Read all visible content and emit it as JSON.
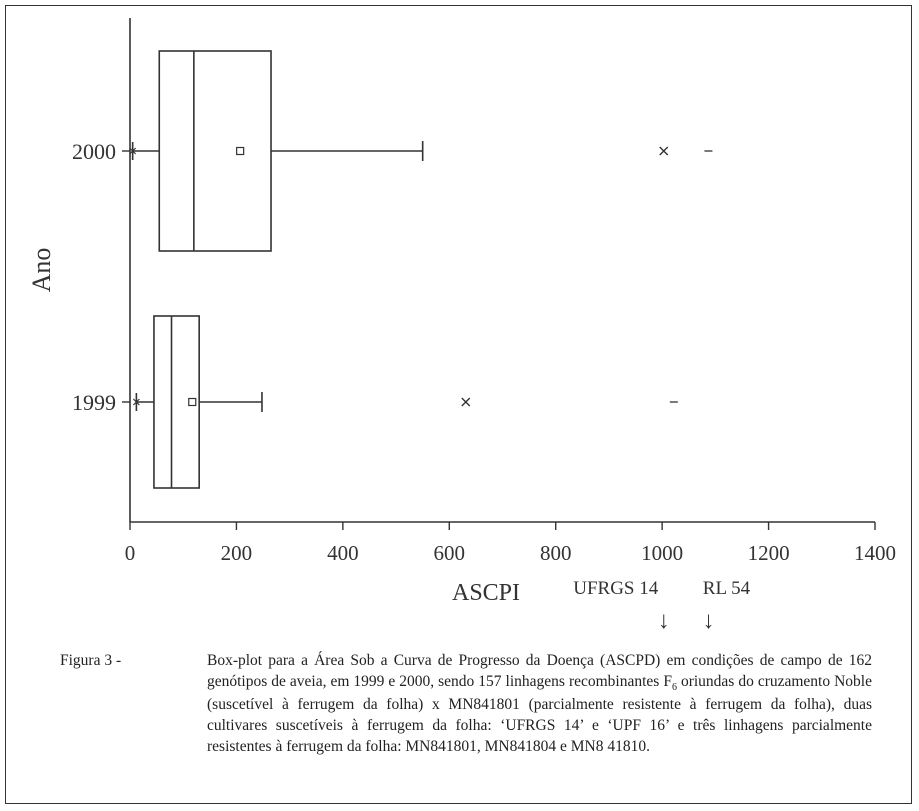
{
  "chart_data": {
    "type": "boxplot",
    "orientation": "horizontal",
    "ylabel": "Ano",
    "xlabel": "ASCPI",
    "xlim": [
      0,
      1400
    ],
    "xticks": [
      0,
      200,
      400,
      600,
      800,
      1000,
      1200,
      1400
    ],
    "categories": [
      "2000",
      "1999"
    ],
    "series": [
      {
        "category": "2000",
        "min": 5,
        "q1": 55,
        "median": 120,
        "q3": 265,
        "max": 550,
        "mean": 207,
        "outlier_x": 1003,
        "outlier_dash": 1087
      },
      {
        "category": "1999",
        "min": 12,
        "q1": 45,
        "median": 78,
        "q3": 130,
        "max": 248,
        "mean": 117,
        "outlier_x": 631,
        "outlier_dash": 1022
      }
    ],
    "annotations": [
      {
        "text": "UFRGS 14",
        "x": 1003,
        "arrow": "↓"
      },
      {
        "text": "RL 54",
        "x": 1087,
        "arrow": "↓"
      }
    ]
  },
  "caption": {
    "label": "Figura 3 -",
    "line1": "Box-plot para a Área Sob a Curva de Progresso da Doença (ASCPD) em condições de campo de 162 genótipos de aveia, em 1999 e 2000, sendo 157 linhagens recombinantes F",
    "subscript": "6",
    "line2": " oriundas do cruzamento Noble (suscetível à ferrugem da folha) x MN841801 (parcialmente resistente à ferrugem da folha), duas cultivares suscetíveis à ferrugem da folha: ‘UFRGS 14’ e ‘UPF 16’ e três linhagens parcialmente resistentes à ferrugem da folha: MN841801, MN841804 e MN8 41810."
  }
}
